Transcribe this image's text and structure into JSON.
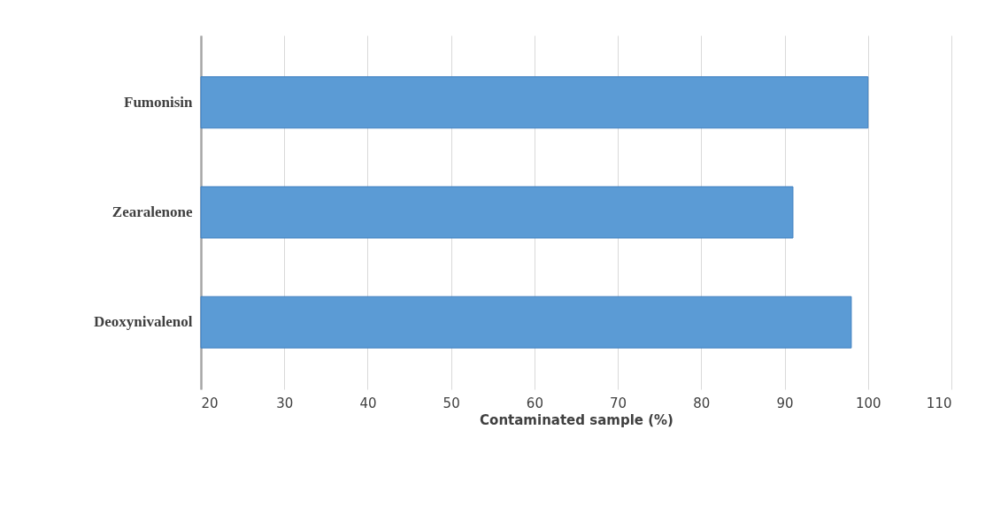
{
  "chart_data": {
    "type": "bar",
    "orientation": "horizontal",
    "categories": [
      "Fumonisin",
      "Zearalenone",
      "Deoxynivalenol"
    ],
    "values": [
      100,
      91,
      98
    ],
    "color": "#5b9bd5",
    "xlabel": "Contaminated sample (%)",
    "xlim": [
      20,
      110
    ],
    "xticks": [
      20,
      30,
      40,
      50,
      60,
      70,
      80,
      90,
      100,
      110
    ],
    "grid": "x"
  }
}
